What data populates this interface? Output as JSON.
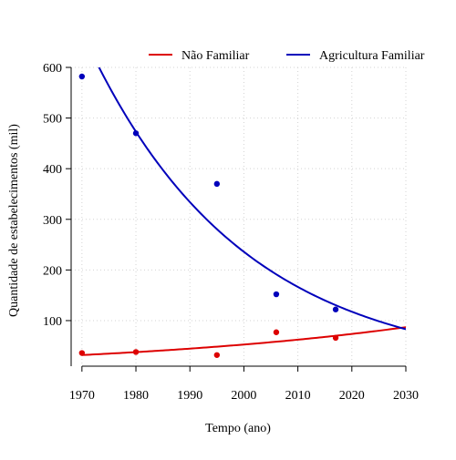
{
  "chart_data": {
    "type": "scatter",
    "xlabel": "Tempo (ano)",
    "ylabel": "Quantidade de estabelecimentos (mil)",
    "xlim": [
      1968,
      2030
    ],
    "ylim": [
      10,
      600
    ],
    "x_ticks": [
      1970,
      1980,
      1990,
      2000,
      2010,
      2020,
      2030
    ],
    "y_ticks": [
      100,
      200,
      300,
      400,
      500,
      600
    ],
    "grid": true,
    "legend_position": "top",
    "series": [
      {
        "name": "Não Familiar",
        "color": "#dd0000",
        "points": [
          {
            "x": 1970,
            "y": 36
          },
          {
            "x": 1980,
            "y": 38
          },
          {
            "x": 1995,
            "y": 32
          },
          {
            "x": 2006,
            "y": 77
          },
          {
            "x": 2017,
            "y": 66
          }
        ],
        "fit": {
          "x0": 1970,
          "y0": 32,
          "x1": 2030,
          "y1": 87
        }
      },
      {
        "name": "Agricultura Familiar",
        "color": "#0000bb",
        "points": [
          {
            "x": 1970,
            "y": 582
          },
          {
            "x": 1980,
            "y": 470
          },
          {
            "x": 1995,
            "y": 370
          },
          {
            "x": 2006,
            "y": 152
          },
          {
            "x": 2017,
            "y": 122
          }
        ],
        "fit": {
          "x0": 1970,
          "y0": 670,
          "x1": 2030,
          "y1": 83
        }
      }
    ]
  }
}
